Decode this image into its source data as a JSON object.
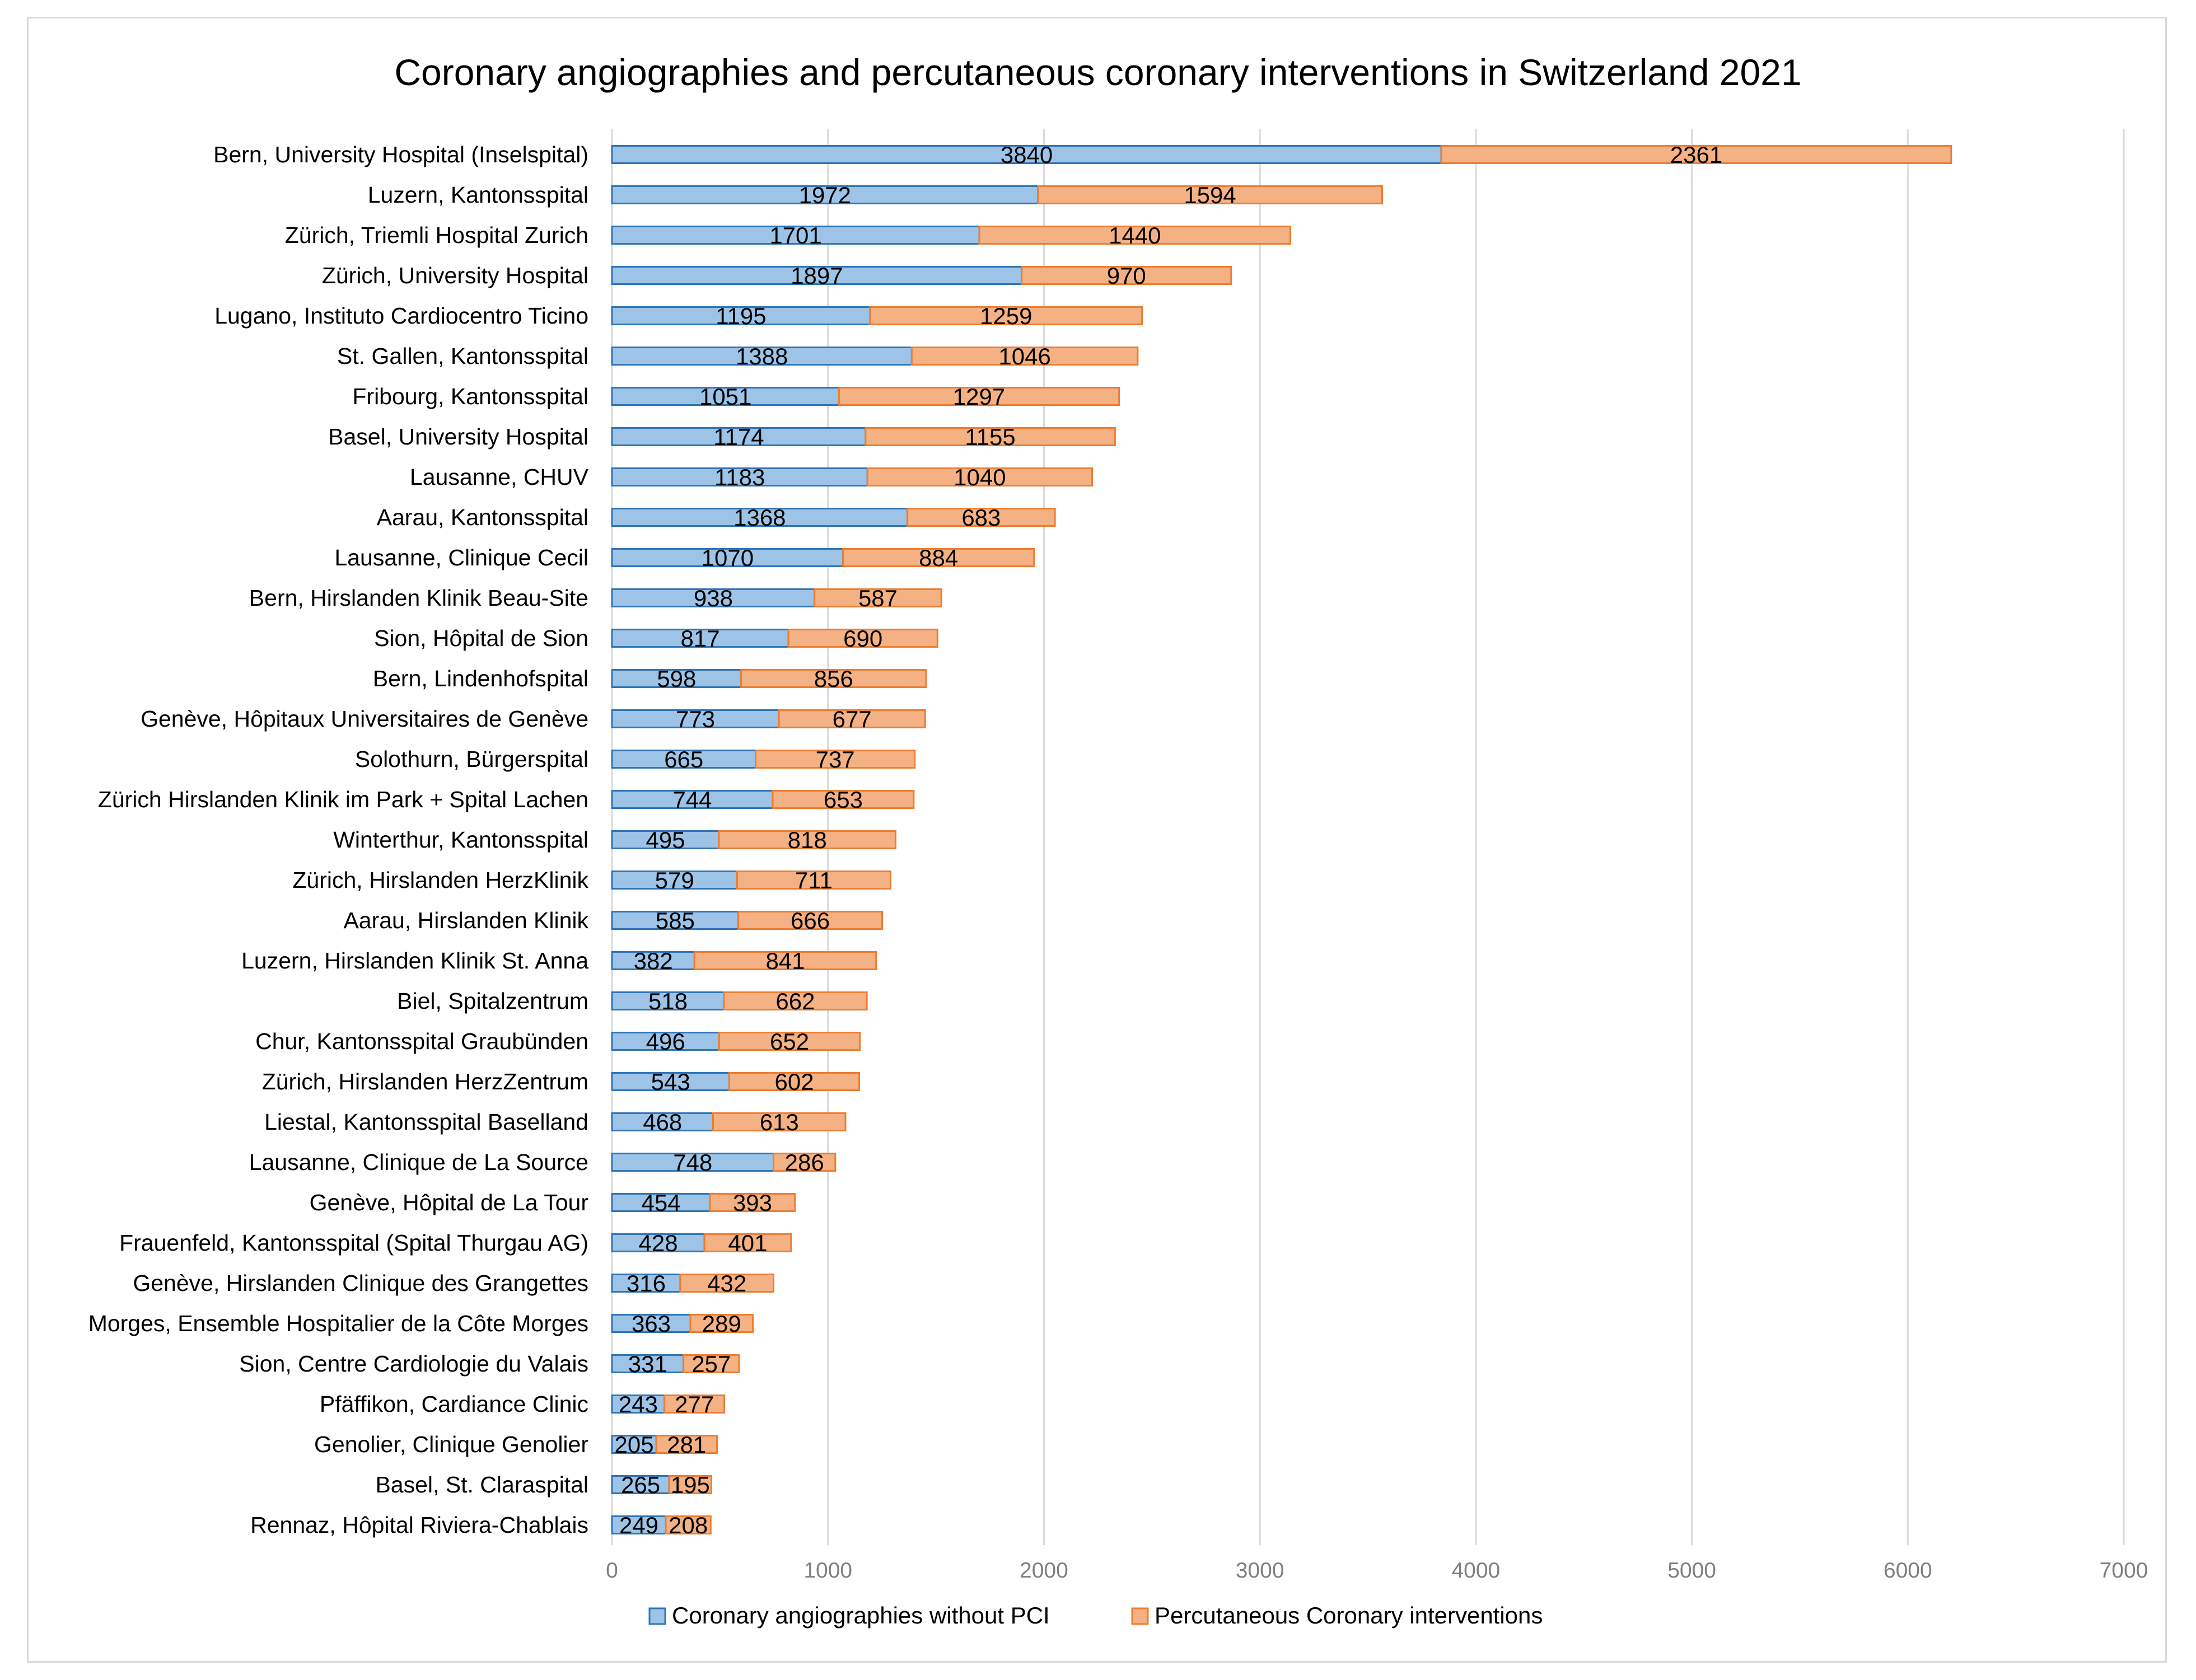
{
  "chart_data": {
    "type": "bar",
    "orientation": "horizontal",
    "stacked": true,
    "title": "Coronary angiographies and percutaneous coronary interventions in Switzerland 2021",
    "xlabel": "",
    "ylabel": "",
    "xlim": [
      0,
      7000
    ],
    "x_ticks": [
      0,
      1000,
      2000,
      3000,
      4000,
      5000,
      6000,
      7000
    ],
    "grid": true,
    "legend_position": "bottom",
    "categories": [
      "Bern, University Hospital (Inselspital)",
      "Luzern, Kantonsspital",
      "Zürich, Triemli Hospital Zurich",
      "Zürich, University Hospital",
      "Lugano, Instituto Cardiocentro Ticino",
      "St. Gallen, Kantonsspital",
      "Fribourg, Kantonsspital",
      "Basel, University Hospital",
      "Lausanne, CHUV",
      "Aarau, Kantonsspital",
      "Lausanne, Clinique Cecil",
      "Bern, Hirslanden Klinik Beau-Site",
      "Sion, Hôpital de Sion",
      "Bern, Lindenhofspital",
      "Genève, Hôpitaux Universitaires de Genève",
      "Solothurn, Bürgerspital",
      "Zürich Hirslanden Klinik im Park + Spital Lachen",
      "Winterthur, Kantonsspital",
      "Zürich, Hirslanden HerzKlinik",
      "Aarau, Hirslanden Klinik",
      "Luzern, Hirslanden Klinik St. Anna",
      "Biel, Spitalzentrum",
      "Chur, Kantonsspital Graubünden",
      "Zürich, Hirslanden HerzZentrum",
      "Liestal, Kantonsspital Baselland",
      "Lausanne, Clinique de La Source",
      "Genève, Hôpital de La Tour",
      "Frauenfeld, Kantonsspital (Spital Thurgau AG)",
      "Genève, Hirslanden Clinique des Grangettes",
      "Morges, Ensemble Hospitalier de la Côte Morges",
      "Sion, Centre Cardiologie du Valais",
      "Pfäffikon, Cardiance Clinic",
      "Genolier, Clinique Genolier",
      "Basel, St. Claraspital",
      "Rennaz, Hôpital Riviera-Chablais"
    ],
    "series": [
      {
        "name": "Coronary angiographies without PCI",
        "color": "#9dc3e6",
        "edge_color": "#2e75b6",
        "values": [
          3840,
          1972,
          1701,
          1897,
          1195,
          1388,
          1051,
          1174,
          1183,
          1368,
          1070,
          938,
          817,
          598,
          773,
          665,
          744,
          495,
          579,
          585,
          382,
          518,
          496,
          543,
          468,
          748,
          454,
          428,
          316,
          363,
          331,
          243,
          205,
          265,
          249
        ]
      },
      {
        "name": "Percutaneous Coronary interventions",
        "color": "#f4b183",
        "edge_color": "#ed7d31",
        "values": [
          2361,
          1594,
          1440,
          970,
          1259,
          1046,
          1297,
          1155,
          1040,
          683,
          884,
          587,
          690,
          856,
          677,
          737,
          653,
          818,
          711,
          666,
          841,
          662,
          652,
          602,
          613,
          286,
          393,
          401,
          432,
          289,
          257,
          277,
          281,
          195,
          208
        ]
      }
    ]
  }
}
